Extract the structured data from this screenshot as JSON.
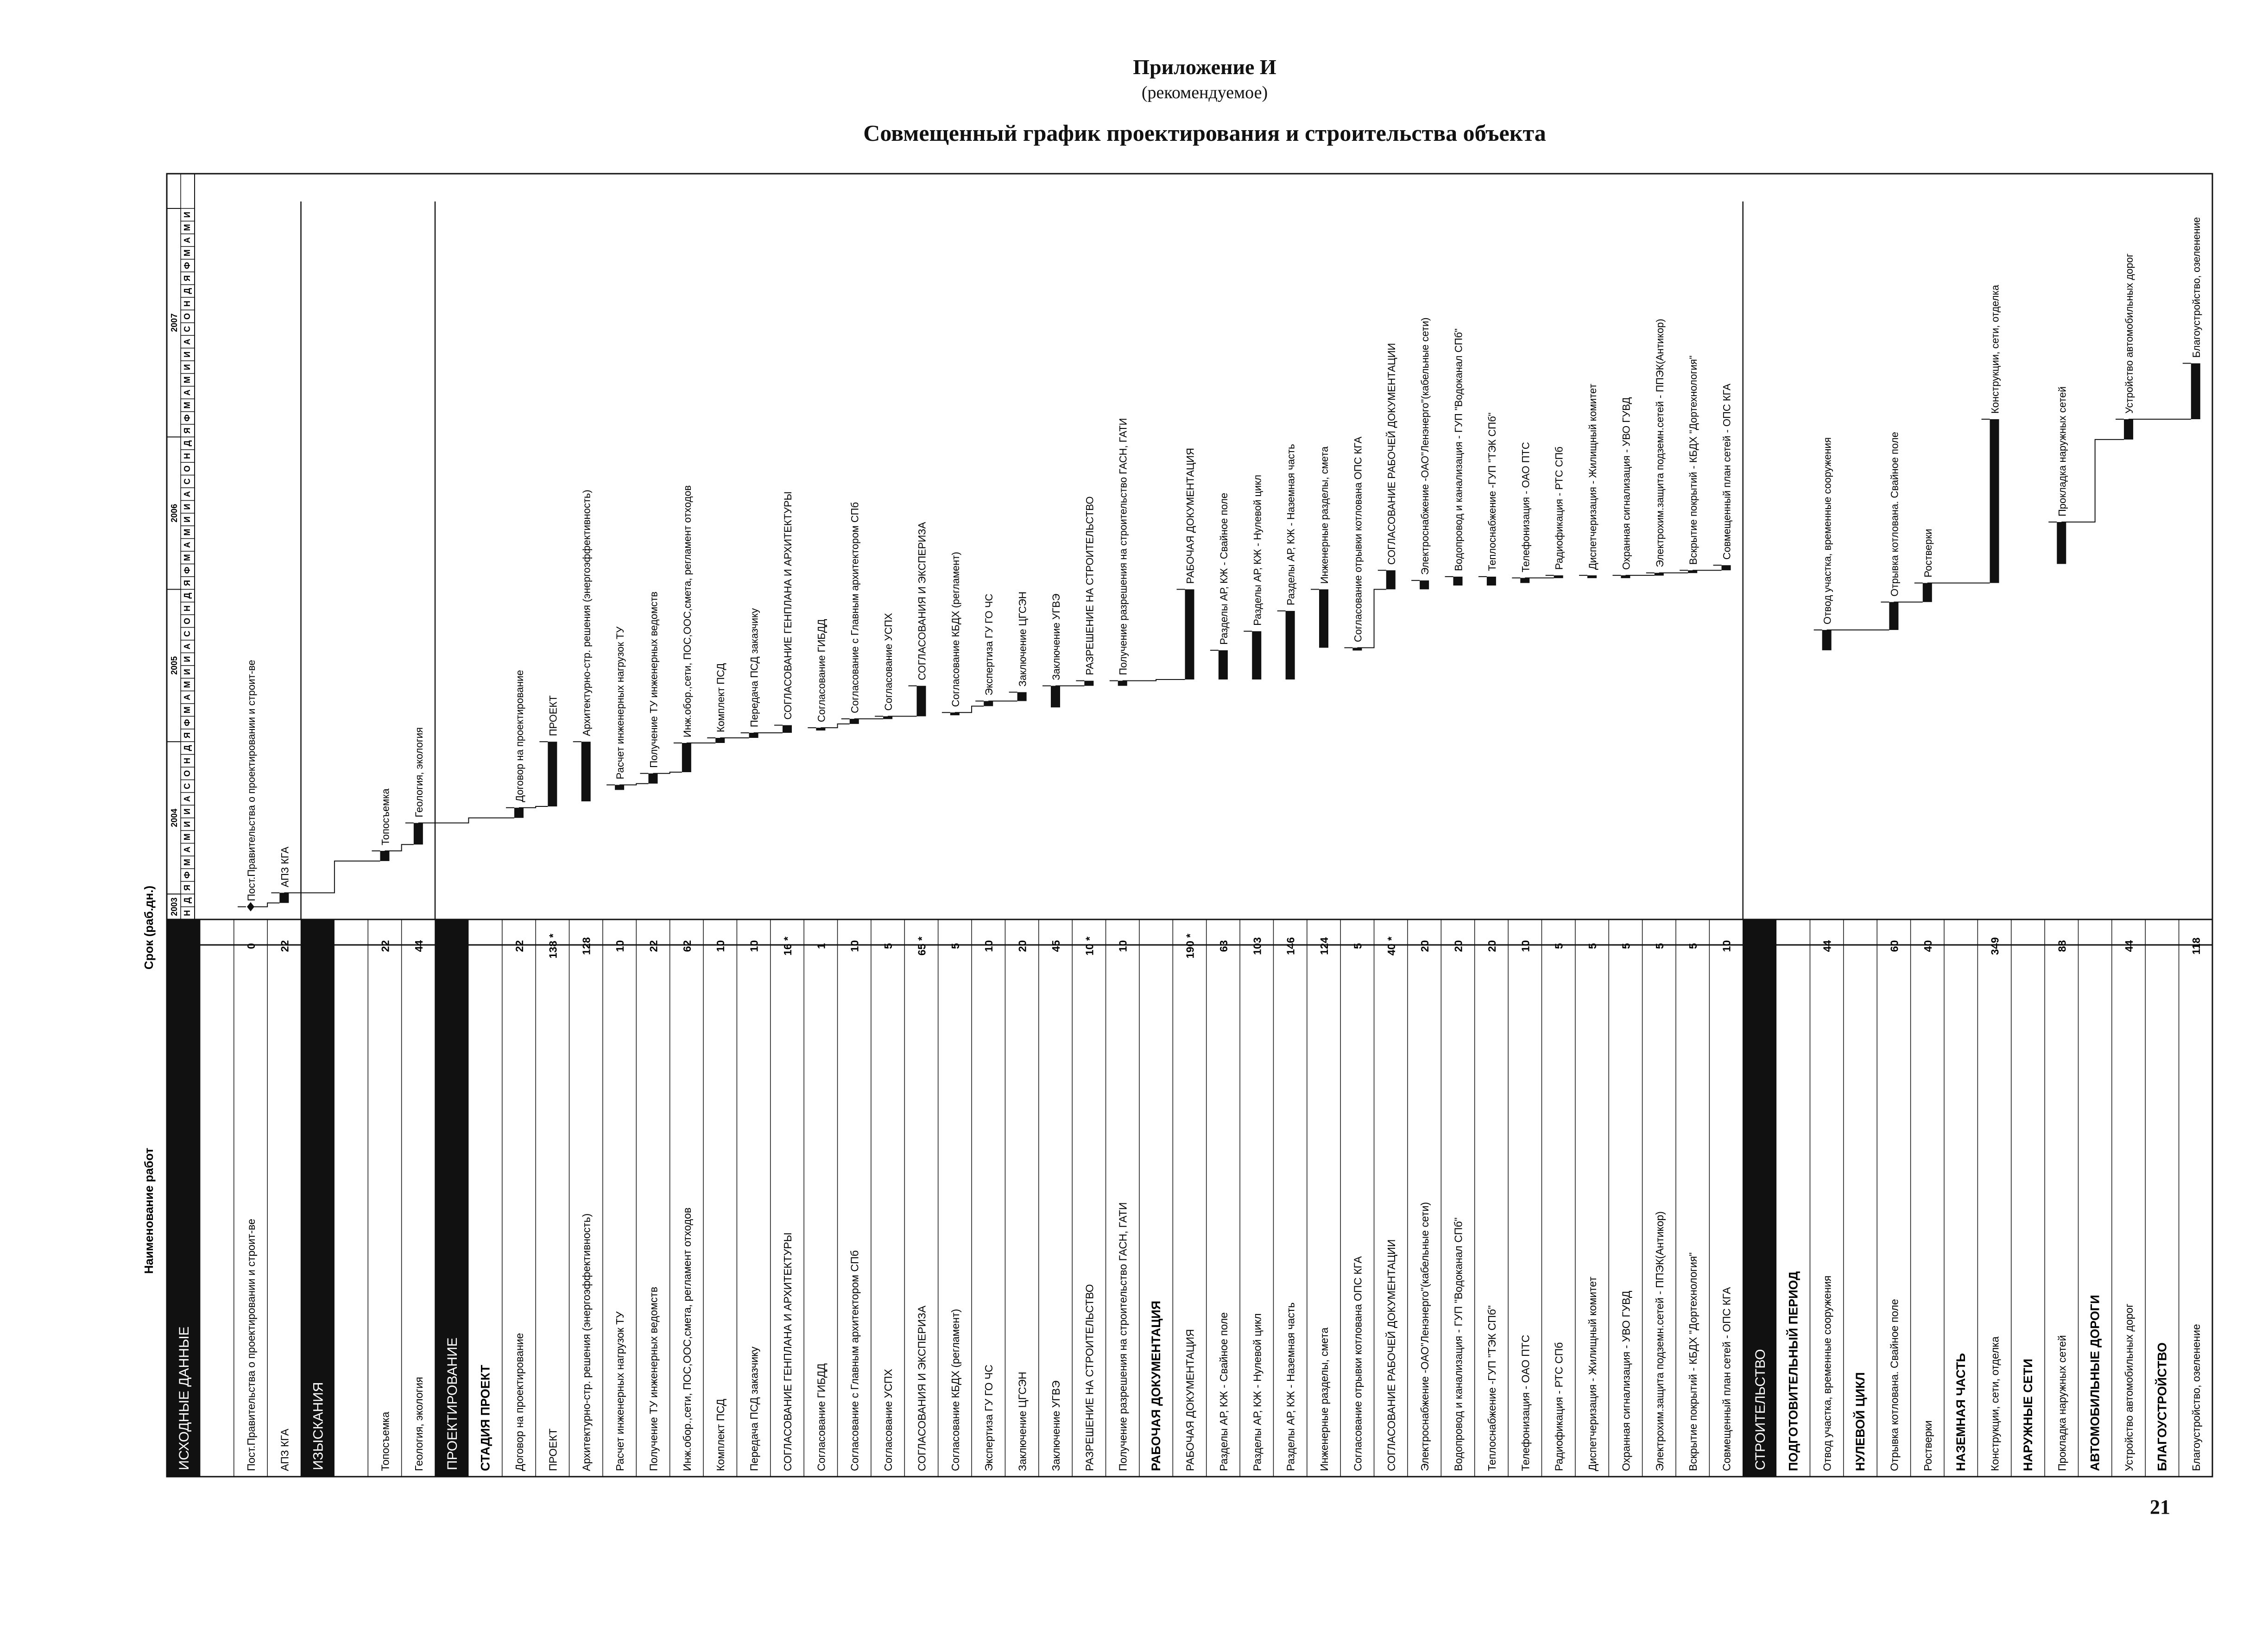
{
  "header": {
    "appendix_title": "Приложение И",
    "appendix_subtitle": "(рекомендуемое)",
    "document_title": "Совмещенный график проектирования и строительства объекта"
  },
  "page_number": "21",
  "table": {
    "col_name_header": "Наименование работ",
    "col_duration_header": "Срок (раб.дн.)",
    "years": [
      "2003",
      "2004",
      "2005",
      "2006",
      "2007"
    ],
    "months": [
      "Н",
      "Д",
      "Я",
      "Ф",
      "М",
      "А",
      "М",
      "И",
      "И",
      "А",
      "С",
      "О",
      "Н",
      "Д",
      "Я",
      "Ф",
      "М",
      "А",
      "М",
      "И",
      "И",
      "А",
      "С",
      "О",
      "Н",
      "Д",
      "Я",
      "Ф",
      "М",
      "А",
      "М",
      "И",
      "И",
      "А",
      "С",
      "О",
      "Н",
      "Д",
      "Я",
      "Ф",
      "М",
      "А",
      "М",
      "И",
      "И",
      "А",
      "С",
      "О",
      "Н",
      "Д",
      "Я",
      "Ф",
      "М",
      "А",
      "М",
      "И"
    ],
    "rows": [
      {
        "type": "section",
        "label": "ИСХОДНЫЕ ДАННЫЕ"
      },
      {
        "type": "blank"
      },
      {
        "type": "task",
        "label": "Пост.Правительства о проектировании и строит-ве",
        "duration": "0",
        "start": 1.0,
        "end": 1.0,
        "milestone": true
      },
      {
        "type": "task",
        "label": "АПЗ КГА",
        "duration": "22",
        "start": 1.3,
        "end": 2.1
      },
      {
        "type": "section",
        "label": "ИЗЫСКАНИЯ"
      },
      {
        "type": "blank"
      },
      {
        "type": "task",
        "label": "Топосъемка",
        "duration": "22",
        "start": 4.6,
        "end": 5.4
      },
      {
        "type": "task",
        "label": "Геология, экология",
        "duration": "44",
        "start": 5.9,
        "end": 7.6
      },
      {
        "type": "section",
        "label": "ПРОЕКТИРОВАНИЕ"
      },
      {
        "type": "group",
        "label": "СТАДИЯ ПРОЕКТ"
      },
      {
        "type": "task",
        "label": "Договор на проектирование",
        "duration": "22",
        "start": 8.0,
        "end": 8.8
      },
      {
        "type": "task",
        "label": "ПРОЕКТ",
        "duration": "138 *",
        "start": 8.9,
        "end": 14.0
      },
      {
        "type": "task",
        "label": "Архитектурно-стр. решения (энергоэффективность)",
        "duration": "128",
        "start": 9.3,
        "end": 14.0
      },
      {
        "type": "task",
        "label": "Расчет инженерных нагрузок ТУ",
        "duration": "10",
        "start": 10.2,
        "end": 10.6
      },
      {
        "type": "task",
        "label": "Получение ТУ инженерных ведомств",
        "duration": "22",
        "start": 10.7,
        "end": 11.5
      },
      {
        "type": "task",
        "label": "Инж.обор.,сети, ПОС,ООС,смета, регламент отходов",
        "duration": "62",
        "start": 11.6,
        "end": 13.9
      },
      {
        "type": "task",
        "label": "Комплект ПСД",
        "duration": "10",
        "start": 13.9,
        "end": 14.3
      },
      {
        "type": "task",
        "label": "Передача ПСД заказчику",
        "duration": "10",
        "start": 14.3,
        "end": 14.7
      },
      {
        "type": "task",
        "label": "СОГЛАСОВАНИЕ ГЕНПЛАНА И АРХИТЕКТУРЫ",
        "duration": "16 *",
        "start": 14.7,
        "end": 15.3
      },
      {
        "type": "task",
        "label": "Согласование ГИБДД",
        "duration": "1",
        "start": 15.0,
        "end": 15.1
      },
      {
        "type": "task",
        "label": "Согласование с Главным архитектором СПб",
        "duration": "10",
        "start": 15.4,
        "end": 15.8
      },
      {
        "type": "task",
        "label": "Согласование УСПХ",
        "duration": "5",
        "start": 15.8,
        "end": 16.0
      },
      {
        "type": "task",
        "label": "СОГЛАСОВАНИЯ И ЭКСПЕРИЗА",
        "duration": "65 *",
        "start": 16.0,
        "end": 18.4
      },
      {
        "type": "task",
        "label": "Согласование КБДХ (регламент)",
        "duration": "5",
        "start": 16.1,
        "end": 16.3
      },
      {
        "type": "task",
        "label": "Экспертиза ГУ ГО ЧС",
        "duration": "10",
        "start": 16.8,
        "end": 17.2
      },
      {
        "type": "task",
        "label": "Заключение ЦГСЭН",
        "duration": "20",
        "start": 17.2,
        "end": 17.9
      },
      {
        "type": "task",
        "label": "Заключение УГВЭ",
        "duration": "45",
        "start": 16.7,
        "end": 18.4
      },
      {
        "type": "task",
        "label": "РАЗРЕШЕНИЕ НА СТРОИТЕЛЬСТВО",
        "duration": "10 *",
        "start": 18.4,
        "end": 18.8
      },
      {
        "type": "task",
        "label": "Получение разрешения на строительство ГАСН, ГАТИ",
        "duration": "10",
        "start": 18.4,
        "end": 18.8
      },
      {
        "type": "group",
        "label": "РАБОЧАЯ ДОКУМЕНТАЦИЯ"
      },
      {
        "type": "task",
        "label": "РАБОЧАЯ ДОКУМЕНТАЦИЯ",
        "duration": "190 *",
        "start": 18.9,
        "end": 26.0
      },
      {
        "type": "task",
        "label": "Разделы АР, КЖ - Свайное поле",
        "duration": "63",
        "start": 18.9,
        "end": 21.2
      },
      {
        "type": "task",
        "label": "Разделы АР, КЖ - Нулевой цикл",
        "duration": "103",
        "start": 18.9,
        "end": 22.7
      },
      {
        "type": "task",
        "label": "Разделы АР, КЖ - Наземная часть",
        "duration": "146",
        "start": 18.9,
        "end": 24.3
      },
      {
        "type": "task",
        "label": "Инженерные разделы,  смета",
        "duration": "124",
        "start": 21.4,
        "end": 26.0
      },
      {
        "type": "task",
        "label": "Согласование отрывки котлована ОПС КГА",
        "duration": "5",
        "start": 21.2,
        "end": 21.4
      },
      {
        "type": "task",
        "label": "СОГЛАСОВАНИЕ РАБОЧЕЙ ДОКУМЕНТАЦИИ",
        "duration": "40 *",
        "start": 26.0,
        "end": 27.5
      },
      {
        "type": "task",
        "label": "Электроснабжение -ОАО\"Ленэнерго\"(кабельные сети)",
        "duration": "20",
        "start": 26.0,
        "end": 26.7
      },
      {
        "type": "task",
        "label": "Водопровод и канализация - ГУП \"Водоканал СПб\"",
        "duration": "20",
        "start": 26.3,
        "end": 27.0
      },
      {
        "type": "task",
        "label": "Теплоснабжение -ГУП \"ТЭК СПб\"",
        "duration": "20",
        "start": 26.3,
        "end": 27.0
      },
      {
        "type": "task",
        "label": "Телефонизация - ОАО ПТС",
        "duration": "10",
        "start": 26.5,
        "end": 26.9
      },
      {
        "type": "task",
        "label": "Радиофикация - РТС СПб",
        "duration": "5",
        "start": 26.9,
        "end": 27.1
      },
      {
        "type": "task",
        "label": "Диспетчеризация - Жилищный комитет",
        "duration": "5",
        "start": 26.9,
        "end": 27.1
      },
      {
        "type": "task",
        "label": "Охранная сигнализация - УВО ГУВД",
        "duration": "5",
        "start": 26.9,
        "end": 27.1
      },
      {
        "type": "task",
        "label": "Электрохим.защита подземн.сетей - ППЭК(Антикор)",
        "duration": "5",
        "start": 27.1,
        "end": 27.3
      },
      {
        "type": "task",
        "label": "Вскрытие покрытий - КБДХ \"Дортехнология\"",
        "duration": "5",
        "start": 27.3,
        "end": 27.5
      },
      {
        "type": "task",
        "label": "Совмещенный план сетей - ОПС КГА",
        "duration": "10",
        "start": 27.5,
        "end": 27.9
      },
      {
        "type": "section",
        "label": "СТРОИТЕЛЬСТВО"
      },
      {
        "type": "group",
        "label": "ПОДГОТОВИТЕЛЬНЫЙ ПЕРИОД"
      },
      {
        "type": "task",
        "label": "Отвод участка, временные сооружения",
        "duration": "44",
        "start": 21.2,
        "end": 22.8
      },
      {
        "type": "group",
        "label": "НУЛЕВОЙ ЦИКЛ"
      },
      {
        "type": "task",
        "label": "Отрывка котлована. Свайное поле",
        "duration": "60",
        "start": 22.8,
        "end": 25.0
      },
      {
        "type": "task",
        "label": "Ростверки",
        "duration": "40",
        "start": 25.0,
        "end": 26.5
      },
      {
        "type": "group",
        "label": "НАЗЕМНАЯ ЧАСТЬ"
      },
      {
        "type": "task",
        "label": "Конструкции, сети, отделка",
        "duration": "349",
        "start": 26.5,
        "end": 39.4
      },
      {
        "type": "group",
        "label": "НАРУЖНЫЕ СЕТИ"
      },
      {
        "type": "task",
        "label": "Прокладка наружных сетей",
        "duration": "88",
        "start": 28.0,
        "end": 31.3
      },
      {
        "type": "group",
        "label": "АВТОМОБИЛЬНЫЕ ДОРОГИ"
      },
      {
        "type": "task",
        "label": "Устройство автомобильных дорог",
        "duration": "44",
        "start": 37.8,
        "end": 39.4
      },
      {
        "type": "group",
        "label": "БЛАГОУСТРОЙСТВО"
      },
      {
        "type": "task",
        "label": "Благоустройство, озеленение",
        "duration": "118",
        "start": 39.4,
        "end": 43.8
      }
    ]
  }
}
